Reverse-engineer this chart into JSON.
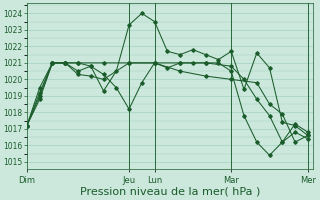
{
  "bg_color": "#cce8dd",
  "grid_color": "#99ccbb",
  "line_color": "#1a5c2a",
  "xlabel": "Pression niveau de la mer( hPa )",
  "xlabel_fontsize": 8,
  "yticks": [
    1015,
    1016,
    1017,
    1018,
    1019,
    1020,
    1021,
    1022,
    1023,
    1024
  ],
  "ylim": [
    1014.6,
    1024.6
  ],
  "day_labels": [
    "Dim",
    "",
    "Jeu",
    "Lun",
    "",
    "Mar",
    "",
    "Mer"
  ],
  "day_positions": [
    0,
    2,
    4,
    5,
    7,
    8,
    10,
    11
  ],
  "vline_positions": [
    4,
    5,
    8,
    11
  ],
  "series1_x": [
    0,
    0.5,
    1,
    1.5,
    2,
    2.5,
    3,
    3.5,
    4,
    4.5,
    5,
    5.5,
    6,
    6.5,
    7,
    7.5,
    8,
    8.5,
    9,
    9.5,
    10,
    10.5,
    11
  ],
  "series1_y": [
    1017.2,
    1018.8,
    1021.0,
    1021.0,
    1020.5,
    1020.8,
    1019.3,
    1020.5,
    1023.3,
    1024.0,
    1023.5,
    1021.7,
    1021.5,
    1021.8,
    1021.5,
    1021.2,
    1021.7,
    1019.4,
    1021.6,
    1020.7,
    1017.4,
    1017.2,
    1016.6
  ],
  "series2_x": [
    0,
    0.5,
    1,
    1.5,
    2,
    2.5,
    3,
    3.5,
    4,
    4.5,
    5,
    5.5,
    6,
    6.5,
    7,
    7.5,
    8,
    8.5,
    9,
    9.5,
    10,
    10.5,
    11
  ],
  "series2_y": [
    1017.2,
    1019.5,
    1021.0,
    1021.0,
    1021.0,
    1020.8,
    1020.3,
    1019.5,
    1018.2,
    1019.8,
    1021.0,
    1020.7,
    1021.0,
    1021.0,
    1021.0,
    1021.0,
    1020.5,
    1017.8,
    1016.2,
    1015.4,
    1016.2,
    1016.8,
    1016.4
  ],
  "series3_x": [
    0,
    0.5,
    1,
    1.5,
    2,
    2.5,
    3,
    4,
    5,
    6,
    7,
    8,
    8.5,
    9,
    9.5,
    10,
    10.5,
    11
  ],
  "series3_y": [
    1017.2,
    1019.2,
    1021.0,
    1021.0,
    1020.3,
    1020.2,
    1020.0,
    1021.0,
    1021.0,
    1021.0,
    1021.0,
    1020.8,
    1020.0,
    1018.8,
    1017.8,
    1016.2,
    1017.3,
    1016.8
  ],
  "series4_x": [
    0,
    0.5,
    1,
    1.5,
    2,
    3,
    4,
    5,
    6,
    7,
    8,
    9,
    9.5,
    10,
    10.5,
    11
  ],
  "series4_y": [
    1017.2,
    1019.0,
    1021.0,
    1021.0,
    1021.0,
    1021.0,
    1021.0,
    1021.0,
    1020.5,
    1020.2,
    1020.0,
    1019.8,
    1018.5,
    1017.9,
    1016.2,
    1016.6
  ],
  "xlim": [
    0,
    11.2
  ]
}
